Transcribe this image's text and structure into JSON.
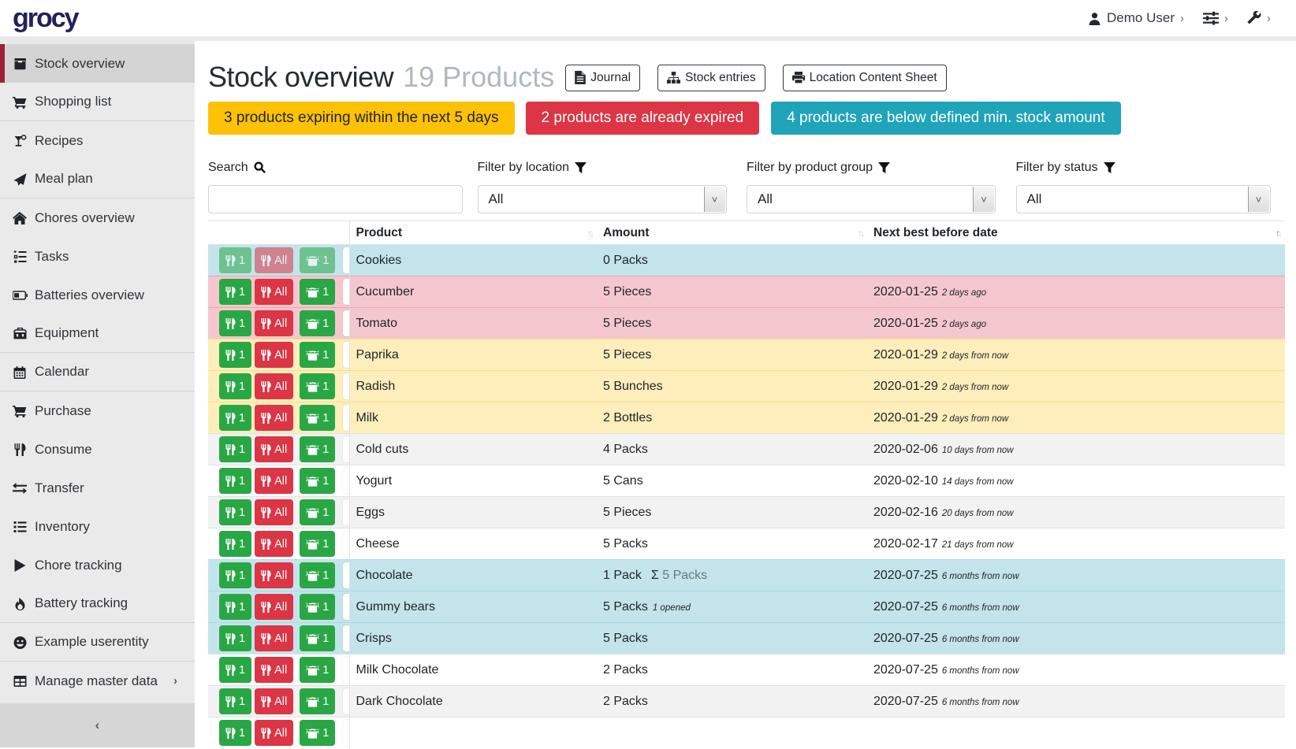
{
  "navbar": {
    "brand": "grocy",
    "user_label": "Demo User",
    "icons": [
      "user-icon",
      "sliders-icon",
      "wrench-icon"
    ]
  },
  "sidebar": {
    "items": [
      {
        "label": "Stock overview",
        "icon": "box",
        "active": true
      },
      {
        "label": "Shopping list",
        "icon": "cart",
        "divider": true
      },
      {
        "label": "Recipes",
        "icon": "cocktail"
      },
      {
        "label": "Meal plan",
        "icon": "paper-plane",
        "divider": true
      },
      {
        "label": "Chores overview",
        "icon": "home"
      },
      {
        "label": "Tasks",
        "icon": "tasks"
      },
      {
        "label": "Batteries overview",
        "icon": "battery"
      },
      {
        "label": "Equipment",
        "icon": "toolbox",
        "divider": true
      },
      {
        "label": "Calendar",
        "icon": "calendar",
        "divider": true
      },
      {
        "label": "Purchase",
        "icon": "cart"
      },
      {
        "label": "Consume",
        "icon": "utensils"
      },
      {
        "label": "Transfer",
        "icon": "exchange"
      },
      {
        "label": "Inventory",
        "icon": "list"
      },
      {
        "label": "Chore tracking",
        "icon": "play"
      },
      {
        "label": "Battery tracking",
        "icon": "fire",
        "divider": true
      },
      {
        "label": "Example userentity",
        "icon": "smile",
        "divider": true
      },
      {
        "label": "Manage master data",
        "icon": "table",
        "chevron": true
      }
    ],
    "collapse_glyph": "‹"
  },
  "header": {
    "title": "Stock overview",
    "count": "19 Products",
    "buttons": [
      {
        "label": "Journal",
        "icon": "file"
      },
      {
        "label": "Stock entries",
        "icon": "sitemap"
      },
      {
        "label": "Location Content Sheet",
        "icon": "print"
      }
    ]
  },
  "alerts": [
    {
      "text": "3 products expiring within the next 5 days",
      "type": "warning"
    },
    {
      "text": "2 products are already expired",
      "type": "danger"
    },
    {
      "text": "4 products are below defined min. stock amount",
      "type": "info"
    }
  ],
  "filters": {
    "search_label": "Search",
    "location_label": "Filter by location",
    "product_group_label": "Filter by product group",
    "status_label": "Filter by status",
    "search_value": "",
    "location_value": "All",
    "product_group_value": "All",
    "status_value": "All"
  },
  "table": {
    "columns": [
      "Product",
      "Amount",
      "Next best before date"
    ],
    "row_buttons": {
      "consume_one": "1",
      "consume_all": "All",
      "open_one": "1"
    },
    "rows": [
      {
        "product": "Cookies",
        "amount": "0 Packs",
        "date": "",
        "rel": "",
        "color": "info",
        "disabled": true
      },
      {
        "product": "Cucumber",
        "amount": "5 Pieces",
        "date": "2020-01-25",
        "rel": "2 days ago",
        "color": "danger"
      },
      {
        "product": "Tomato",
        "amount": "5 Pieces",
        "date": "2020-01-25",
        "rel": "2 days ago",
        "color": "danger"
      },
      {
        "product": "Paprika",
        "amount": "5 Pieces",
        "date": "2020-01-29",
        "rel": "2 days from now",
        "color": "warning"
      },
      {
        "product": "Radish",
        "amount": "5 Bunches",
        "date": "2020-01-29",
        "rel": "2 days from now",
        "color": "warning"
      },
      {
        "product": "Milk",
        "amount": "2 Bottles",
        "date": "2020-01-29",
        "rel": "2 days from now",
        "color": "warning"
      },
      {
        "product": "Cold cuts",
        "amount": "4 Packs",
        "date": "2020-02-06",
        "rel": "10 days from now",
        "color": "stripe"
      },
      {
        "product": "Yogurt",
        "amount": "5 Cans",
        "date": "2020-02-10",
        "rel": "14 days from now",
        "color": ""
      },
      {
        "product": "Eggs",
        "amount": "5 Pieces",
        "date": "2020-02-16",
        "rel": "20 days from now",
        "color": "stripe"
      },
      {
        "product": "Cheese",
        "amount": "5 Packs",
        "date": "2020-02-17",
        "rel": "21 days from now",
        "color": ""
      },
      {
        "product": "Chocolate",
        "amount": "1 Pack",
        "amount_sum_sigma": "Σ",
        "amount_sum": "5 Packs",
        "date": "2020-07-25",
        "rel": "6 months from now",
        "color": "info"
      },
      {
        "product": "Gummy bears",
        "amount": "5 Packs",
        "amount_opened": "1 opened",
        "date": "2020-07-25",
        "rel": "6 months from now",
        "color": "info"
      },
      {
        "product": "Crisps",
        "amount": "5 Packs",
        "date": "2020-07-25",
        "rel": "6 months from now",
        "color": "info"
      },
      {
        "product": "Milk Chocolate",
        "amount": "2 Packs",
        "date": "2020-07-25",
        "rel": "6 months from now",
        "color": ""
      },
      {
        "product": "Dark Chocolate",
        "amount": "2 Packs",
        "date": "2020-07-25",
        "rel": "6 months from now",
        "color": "stripe"
      },
      {
        "product": "",
        "amount": "",
        "date": "",
        "rel": "",
        "color": ""
      }
    ]
  },
  "colors": {
    "accent_red": "#9c2035",
    "success": "#2aa745",
    "danger": "#dc3545",
    "warning": "#fdc107",
    "info": "#1fa4ba"
  }
}
